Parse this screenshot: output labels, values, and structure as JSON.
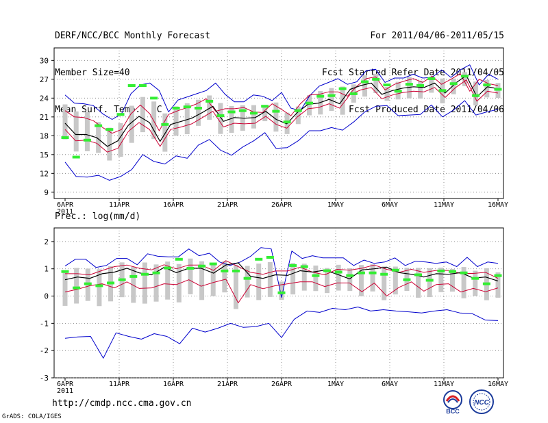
{
  "header": {
    "title": "DERF/NCC/BCC Monthly Forecast",
    "member_size": "Member Size=40",
    "variable": "Mean Surf. Temp.: °C",
    "period": "For 2011/04/06-2011/05/15",
    "start_date": "Fcst Started Refer Date 2011/04/05",
    "produced_date": "Fcst Produced Date 2011/04/06"
  },
  "footer": {
    "url": "http://cmdp.ncc.cma.gov.cn",
    "credit": "GrADS: COLA/IGES",
    "logo_left": "BCC",
    "logo_right": "NCC"
  },
  "colors": {
    "envelope": "#0000cc",
    "spread": "#cc0033",
    "mean": "#000000",
    "box": "#c8c8c8",
    "median": "#33ee33",
    "grid": "#777777"
  },
  "chart_data": [
    {
      "type": "line",
      "title": "Mean Surf. Temp.: °C",
      "x_tick_labels": [
        "6APR",
        "11APR",
        "16APR",
        "21APR",
        "26APR",
        "1MAY",
        "6MAY",
        "11MAY",
        "16MAY"
      ],
      "x_year_label": "2011",
      "ylim": [
        8,
        32
      ],
      "y_ticks": [
        9,
        12,
        15,
        18,
        21,
        24,
        27,
        30
      ],
      "series": [
        {
          "name": "max",
          "values": [
            24.5,
            23.2,
            23.1,
            22.8,
            21.5,
            20.6,
            21.5,
            24.7,
            26.1,
            26.4,
            25.2,
            21.8,
            23.7,
            24.2,
            24.7,
            25.2,
            26.4,
            24.6,
            23.4,
            23.4,
            24.5,
            24.3,
            23.6,
            24.9,
            22.4,
            22.0,
            24.4,
            25.9,
            26.5,
            27.1,
            26.2,
            26.6,
            28.4,
            28.6,
            26.5,
            27.2,
            27.2,
            27.8,
            27.2,
            27.3,
            28.5,
            27.3,
            28.5,
            29.3,
            26.1,
            27.8,
            27.0
          ]
        },
        {
          "name": "upper",
          "values": [
            22.0,
            21.0,
            20.9,
            20.4,
            19.3,
            18.4,
            19.0,
            21.5,
            22.9,
            21.5,
            18.8,
            21.4,
            22.0,
            22.5,
            23.1,
            23.9,
            21.9,
            22.3,
            22.3,
            22.5,
            21.8,
            21.7,
            23.1,
            22.2,
            21.2,
            23.1,
            24.5,
            24.6,
            25.0,
            25.0,
            24.3,
            25.9,
            27.1,
            27.4,
            25.3,
            26.2,
            26.7,
            27.1,
            26.5,
            27.5,
            26.2,
            27.0,
            27.9,
            25.1,
            27.0,
            26.3,
            26.0
          ]
        },
        {
          "name": "mean",
          "values": [
            20.0,
            18.2,
            18.2,
            17.7,
            16.3,
            17.2,
            19.7,
            21.1,
            20.1,
            17.1,
            19.8,
            20.3,
            20.8,
            21.7,
            22.7,
            20.3,
            20.9,
            20.8,
            20.9,
            21.9,
            20.6,
            19.9,
            21.7,
            23.0,
            23.2,
            23.8,
            23.1,
            25.4,
            26.0,
            26.4,
            24.6,
            25.2,
            25.6,
            25.8,
            25.7,
            26.4,
            24.8,
            26.4,
            27.6,
            24.2,
            25.8,
            25.5
          ]
        },
        {
          "name": "lower",
          "values": [
            19.0,
            17.2,
            17.3,
            16.8,
            15.4,
            16.0,
            18.7,
            20.1,
            19.0,
            16.3,
            19.0,
            19.4,
            19.9,
            20.9,
            21.9,
            19.4,
            20.0,
            19.9,
            20.0,
            21.1,
            19.8,
            19.2,
            21.0,
            22.3,
            22.5,
            23.1,
            22.4,
            24.6,
            25.3,
            25.7,
            23.9,
            24.5,
            24.9,
            25.1,
            25.0,
            25.7,
            24.1,
            25.7,
            26.9,
            23.5,
            25.1,
            24.8
          ]
        },
        {
          "name": "min",
          "values": [
            13.8,
            11.5,
            11.4,
            11.7,
            10.9,
            11.5,
            12.6,
            15.0,
            13.9,
            13.5,
            14.8,
            14.4,
            16.5,
            17.4,
            15.7,
            14.9,
            16.2,
            17.2,
            18.5,
            16.0,
            16.1,
            17.2,
            18.8,
            18.8,
            19.3,
            18.9,
            20.2,
            21.8,
            22.7,
            22.8,
            21.2,
            21.3,
            21.4,
            22.9,
            21.0,
            22.1,
            23.6,
            21.3,
            21.8,
            22.2
          ]
        },
        {
          "name": "median",
          "values": [
            17.7,
            14.6,
            17.3,
            19.6,
            19.0,
            21.4,
            26.0,
            26.0,
            24.0,
            19.8,
            22.4,
            22.6,
            22.4,
            23.5,
            21.2,
            21.8,
            22.0,
            21.6,
            22.7,
            21.9,
            20.2,
            22.0,
            23.2,
            24.3,
            24.4,
            25.5,
            24.7,
            26.6,
            27.0,
            26.1,
            25.1,
            26.2,
            26.0,
            27.1,
            25.2,
            26.3,
            27.5,
            24.4,
            26.1,
            25.4
          ]
        }
      ]
    },
    {
      "type": "line",
      "title": "Prec.: log(mm/d)",
      "x_tick_labels": [
        "6APR",
        "11APR",
        "16APR",
        "21APR",
        "26APR",
        "1MAY",
        "6MAY",
        "11MAY",
        "16MAY"
      ],
      "x_year_label": "2011",
      "ylim": [
        -3,
        2.5
      ],
      "y_ticks": [
        -3,
        -2,
        -1,
        0,
        1,
        2
      ],
      "series": [
        {
          "name": "max",
          "values": [
            1.1,
            1.35,
            1.35,
            1.05,
            1.12,
            1.38,
            1.38,
            1.15,
            1.55,
            1.46,
            1.44,
            1.44,
            1.73,
            1.48,
            1.57,
            1.25,
            1.12,
            1.25,
            1.46,
            1.78,
            1.73,
            -0.05,
            1.65,
            1.38,
            1.48,
            1.4,
            1.4,
            1.4,
            1.12,
            1.32,
            1.2,
            1.25,
            1.4,
            1.12,
            1.28,
            1.25,
            1.2,
            1.25,
            1.08,
            1.42,
            1.08,
            1.25,
            1.2
          ]
        },
        {
          "name": "upper",
          "values": [
            0.82,
            0.82,
            0.78,
            0.94,
            1.08,
            1.14,
            1.02,
            0.96,
            1.15,
            1.0,
            1.14,
            1.14,
            0.94,
            1.3,
            1.08,
            0.87,
            0.8,
            0.92,
            0.92,
            1.06,
            0.88,
            0.78,
            0.98,
            0.95,
            1.02,
            1.14,
            0.98,
            0.87,
            0.98,
            0.87,
            0.94,
            0.94,
            0.83,
            0.83,
            0.87,
            0.65
          ]
        },
        {
          "name": "mean",
          "values": [
            0.6,
            0.7,
            0.65,
            0.82,
            0.88,
            1.02,
            0.85,
            0.78,
            1.05,
            0.86,
            1.02,
            1.02,
            0.84,
            1.14,
            1.22,
            0.72,
            0.65,
            0.78,
            0.76,
            0.93,
            0.88,
            0.95,
            0.8,
            0.63,
            0.96,
            1.0,
            1.06,
            0.86,
            0.8,
            0.7,
            0.82,
            0.8,
            0.86,
            0.66,
            0.7,
            0.55
          ]
        },
        {
          "name": "lower",
          "values": [
            0.15,
            0.25,
            0.38,
            0.45,
            0.3,
            0.52,
            0.28,
            0.3,
            0.45,
            0.42,
            0.6,
            0.36,
            0.5,
            0.62,
            -0.25,
            0.42,
            0.27,
            0.38,
            0.45,
            0.52,
            0.52,
            0.35,
            0.48,
            0.48,
            0.16,
            0.48,
            0.0,
            0.32,
            0.52,
            0.18,
            0.42,
            0.45,
            0.15,
            0.28,
            0.16,
            0.3
          ]
        },
        {
          "name": "min",
          "values": [
            -1.55,
            -1.5,
            -1.48,
            -2.28,
            -1.35,
            -1.48,
            -1.58,
            -1.38,
            -1.48,
            -1.75,
            -1.18,
            -1.32,
            -1.18,
            -1.0,
            -1.15,
            -1.12,
            -1.0,
            -1.52,
            -0.85,
            -0.55,
            -0.6,
            -0.45,
            -0.5,
            -0.4,
            -0.55,
            -0.5,
            -0.55,
            -0.58,
            -0.62,
            -0.55,
            -0.5,
            -0.62,
            -0.65,
            -0.88,
            -0.9
          ]
        },
        {
          "name": "median",
          "values": [
            0.9,
            0.3,
            0.45,
            0.38,
            0.48,
            0.6,
            0.72,
            0.8,
            0.85,
            1.03,
            1.35,
            1.02,
            1.1,
            1.18,
            0.92,
            0.92,
            0.65,
            1.35,
            1.42,
            0.12,
            1.12,
            1.08,
            0.75,
            0.93,
            0.88,
            0.75,
            0.85,
            0.85,
            0.8,
            0.95,
            0.6,
            0.78,
            0.58,
            0.92,
            0.9,
            0.85,
            0.65,
            0.45,
            0.75
          ]
        }
      ]
    }
  ]
}
